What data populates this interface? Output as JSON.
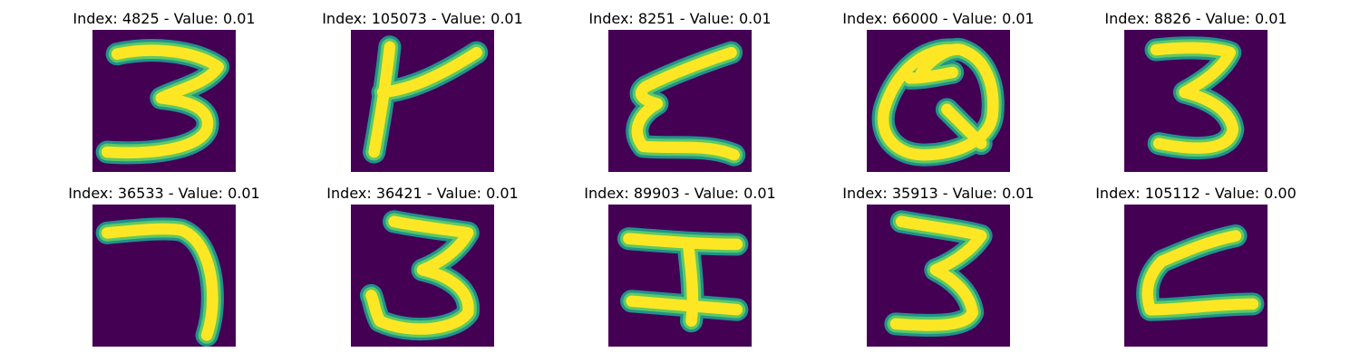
{
  "colors": {
    "background": "#440154",
    "stroke_outer": "#21918c",
    "stroke_mid": "#5ec962",
    "stroke_core": "#fde725"
  },
  "panels": [
    {
      "title": "Index: 4825 - Value: 0.01",
      "glyph": "3-open"
    },
    {
      "title": "Index: 105073 - Value: 0.01",
      "glyph": "Y-slant"
    },
    {
      "title": "Index: 8251 - Value: 0.01",
      "glyph": "zigzag"
    },
    {
      "title": "Index: 66000 - Value: 0.01",
      "glyph": "Q-loop"
    },
    {
      "title": "Index: 8826 - Value: 0.01",
      "glyph": "3"
    },
    {
      "title": "Index: 36533 - Value: 0.01",
      "glyph": "7-hook"
    },
    {
      "title": "Index: 36421 - Value: 0.01",
      "glyph": "3"
    },
    {
      "title": "Index: 89903 - Value: 0.01",
      "glyph": "I-beam"
    },
    {
      "title": "Index: 35913 - Value: 0.01",
      "glyph": "3"
    },
    {
      "title": "Index: 105112 - Value: 0.00",
      "glyph": "zigzag"
    }
  ]
}
